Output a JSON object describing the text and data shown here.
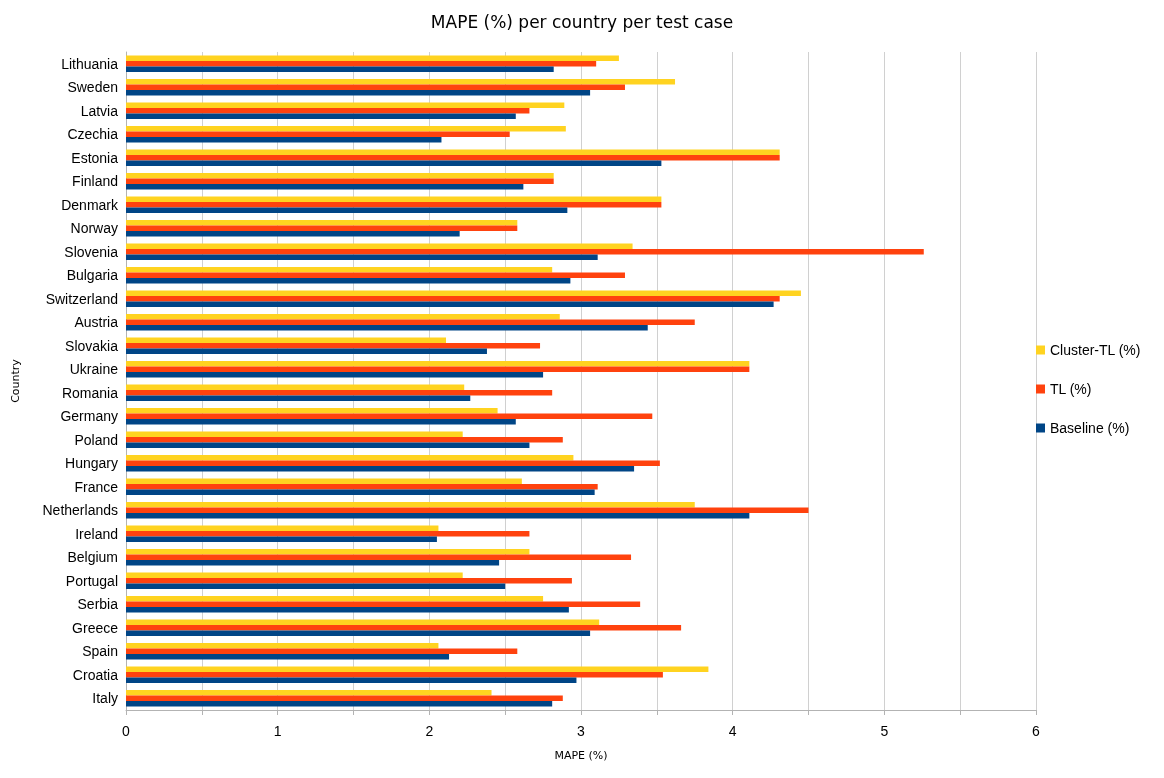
{
  "chart_data": {
    "type": "bar",
    "orientation": "horizontal",
    "title": "MAPE (%) per country per test case",
    "xlabel": "MAPE (%)",
    "ylabel": "Country",
    "categories": [
      "Lithuania",
      "Sweden",
      "Latvia",
      "Czechia",
      "Estonia",
      "Finland",
      "Denmark",
      "Norway",
      "Slovenia",
      "Bulgaria",
      "Switzerland",
      "Austria",
      "Slovakia",
      "Ukraine",
      "Romania",
      "Germany",
      "Poland",
      "Hungary",
      "France",
      "Netherlands",
      "Ireland",
      "Belgium",
      "Portugal",
      "Serbia",
      "Greece",
      "Spain",
      "Croatia",
      "Italy"
    ],
    "series": [
      {
        "name": "Cluster-TL (%)",
        "color": "#ffd320",
        "values": [
          3.25,
          3.62,
          2.89,
          2.9,
          4.31,
          2.82,
          3.53,
          2.58,
          3.34,
          2.81,
          4.45,
          2.86,
          2.11,
          4.11,
          2.23,
          2.45,
          2.22,
          2.95,
          2.61,
          3.75,
          2.06,
          2.66,
          2.22,
          2.75,
          3.12,
          2.06,
          3.84,
          2.41
        ]
      },
      {
        "name": "TL (%)",
        "color": "#ff420e",
        "values": [
          3.1,
          3.29,
          2.66,
          2.53,
          4.31,
          2.82,
          3.53,
          2.58,
          5.26,
          3.29,
          4.31,
          3.75,
          2.73,
          4.11,
          2.81,
          3.47,
          2.88,
          3.52,
          3.11,
          4.5,
          2.66,
          3.33,
          2.94,
          3.39,
          3.66,
          2.58,
          3.54,
          2.88
        ]
      },
      {
        "name": "Baseline (%)",
        "color": "#004586",
        "values": [
          2.82,
          3.06,
          2.57,
          2.08,
          3.53,
          2.62,
          2.91,
          2.2,
          3.11,
          2.93,
          4.27,
          3.44,
          2.38,
          2.75,
          2.27,
          2.57,
          2.66,
          3.35,
          3.09,
          4.11,
          2.05,
          2.46,
          2.5,
          2.92,
          3.06,
          2.13,
          2.97,
          2.81
        ]
      }
    ],
    "xlim": [
      0,
      6
    ],
    "xticks": [
      0,
      {
        "value": 0.5,
        "label": null
      },
      1,
      {
        "value": 1.5,
        "label": null
      },
      2,
      {
        "value": 2.5,
        "label": null
      },
      3,
      {
        "value": 3.5,
        "label": null
      },
      4,
      {
        "value": 4.5,
        "label": null
      },
      5,
      {
        "value": 5.5,
        "label": null
      },
      6
    ],
    "grid": "x",
    "legend": "right"
  }
}
